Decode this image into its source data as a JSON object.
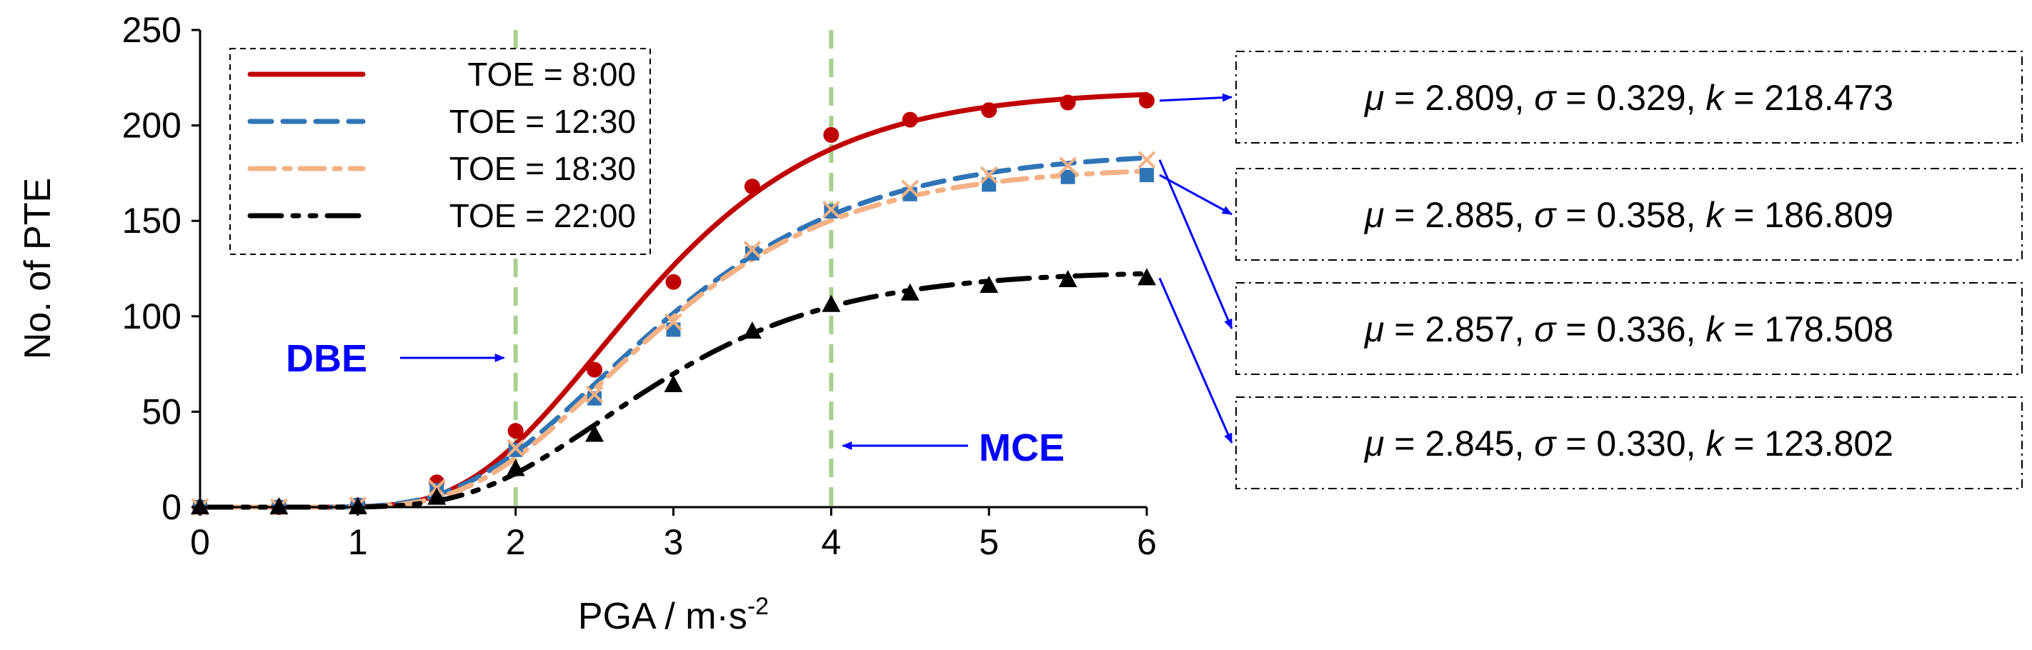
{
  "chart_data": {
    "type": "line",
    "xlabel": "PGA / m·s",
    "xlabel_sup": "-2",
    "ylabel": "No. of PTE",
    "xlim": [
      0,
      6
    ],
    "ylim": [
      0,
      250
    ],
    "x_ticks": [
      "0",
      "1",
      "2",
      "3",
      "4",
      "5",
      "6"
    ],
    "y_ticks": [
      "0",
      "50",
      "100",
      "150",
      "200",
      "250"
    ],
    "grid": false,
    "legend_position": "top-left",
    "series": [
      {
        "name": "TOE = 8:00",
        "color": "#c00000",
        "line_style": "solid",
        "marker": "circle",
        "marker_color": "#c00000",
        "x": [
          0,
          0.5,
          1,
          1.5,
          2,
          2.5,
          3,
          3.5,
          4,
          4.5,
          5,
          5.5,
          6
        ],
        "points": [
          0,
          0,
          1,
          13,
          40,
          72,
          118,
          168,
          195,
          203,
          208,
          212,
          213
        ],
        "fit": {
          "mu": 2.809,
          "sigma": 0.329,
          "k": 218.473
        }
      },
      {
        "name": "TOE = 12:30",
        "color": "#2e75b6",
        "line_style": "dashed",
        "marker": "square",
        "marker_color": "#2e75b6",
        "x": [
          0,
          0.5,
          1,
          1.5,
          2,
          2.5,
          3,
          3.5,
          4,
          4.5,
          5,
          5.5,
          6
        ],
        "points": [
          0,
          0,
          1,
          9,
          30,
          57,
          93,
          133,
          155,
          164,
          169,
          173,
          174
        ],
        "fit": {
          "mu": 2.885,
          "sigma": 0.358,
          "k": 186.809
        }
      },
      {
        "name": "TOE = 18:30",
        "color": "#f4b183",
        "line_style": "dash-dot",
        "marker": "x",
        "marker_color": "#f4b183",
        "x": [
          0,
          0.5,
          1,
          1.5,
          2,
          2.5,
          3,
          3.5,
          4,
          4.5,
          5,
          5.5,
          6
        ],
        "points": [
          0,
          0,
          1,
          10,
          31,
          59,
          97,
          135,
          156,
          167,
          174,
          179,
          182
        ],
        "fit": {
          "mu": 2.857,
          "sigma": 0.336,
          "k": 178.508
        }
      },
      {
        "name": "TOE = 22:00",
        "color": "#000000",
        "line_style": "long-dash-dot-dot",
        "marker": "triangle",
        "marker_color": "#000000",
        "x": [
          0,
          0.5,
          1,
          1.5,
          2,
          2.5,
          3,
          3.5,
          4,
          4.5,
          5,
          5.5,
          6
        ],
        "points": [
          0,
          0,
          0,
          5,
          20,
          38,
          64,
          92,
          106,
          112,
          116,
          119,
          120
        ],
        "fit": {
          "mu": 2.845,
          "sigma": 0.33,
          "k": 123.802
        }
      }
    ],
    "reference_lines": [
      {
        "label": "DBE",
        "x": 2,
        "color": "#a9d18e"
      },
      {
        "label": "MCE",
        "x": 4,
        "color": "#a9d18e"
      }
    ],
    "annotation_color": "#0000ff",
    "parameter_boxes": [
      {
        "mu": "2.809",
        "sigma": "0.329",
        "k": "218.473"
      },
      {
        "mu": "2.885",
        "sigma": "0.358",
        "k": "186.809"
      },
      {
        "mu": "2.857",
        "sigma": "0.336",
        "k": "178.508"
      },
      {
        "mu": "2.845",
        "sigma": "0.330",
        "k": "123.802"
      }
    ]
  }
}
